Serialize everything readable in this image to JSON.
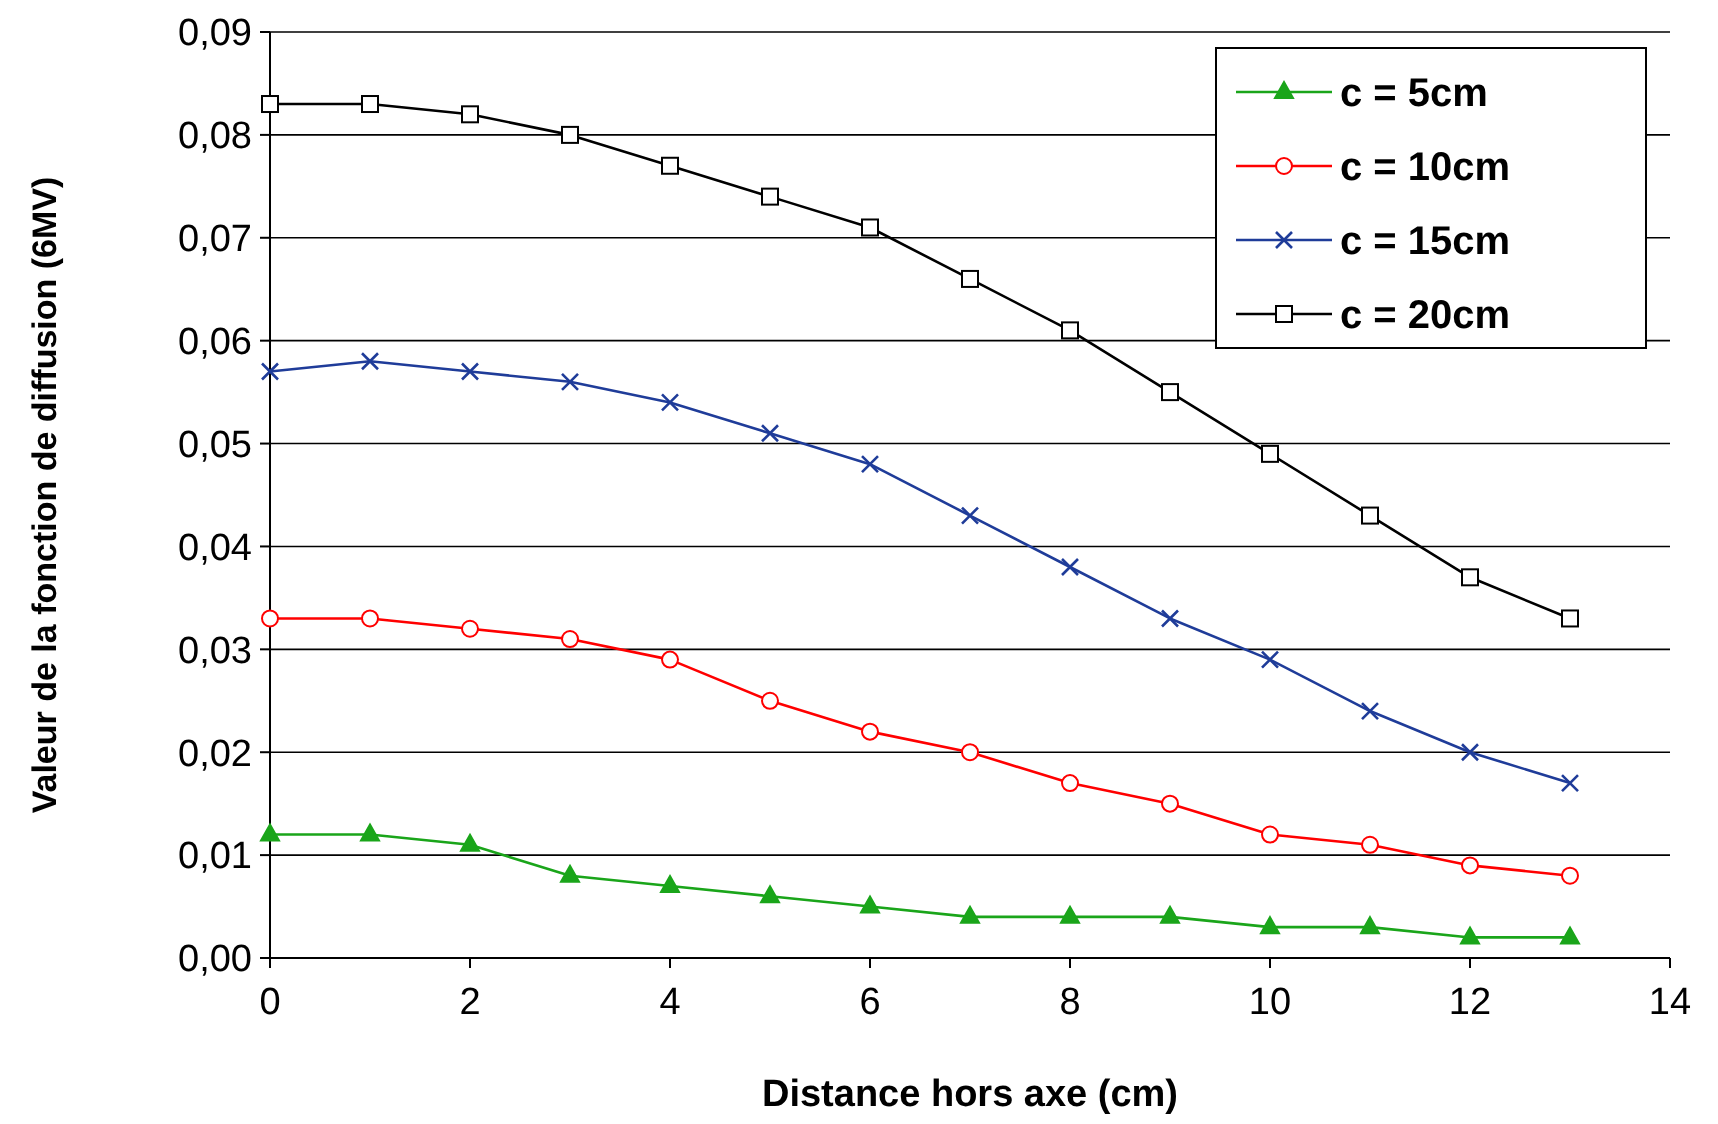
{
  "chart_data": {
    "type": "line",
    "xlabel": "Distance hors axe (cm)",
    "ylabel": "Valeur de la fonction de diffusion (6MV)",
    "x": [
      0,
      1,
      2,
      3,
      4,
      5,
      6,
      7,
      8,
      9,
      10,
      11,
      12,
      13
    ],
    "series": [
      {
        "name": "c = 5cm",
        "color": "#1aa51a",
        "marker": "triangle",
        "values": [
          0.012,
          0.012,
          0.011,
          0.008,
          0.007,
          0.006,
          0.005,
          0.004,
          0.004,
          0.004,
          0.003,
          0.003,
          0.002,
          0.002
        ]
      },
      {
        "name": "c = 10cm",
        "color": "#ff0000",
        "marker": "circle",
        "values": [
          0.033,
          0.033,
          0.032,
          0.031,
          0.029,
          0.025,
          0.022,
          0.02,
          0.017,
          0.015,
          0.012,
          0.011,
          0.009,
          0.008
        ]
      },
      {
        "name": "c = 15cm",
        "color": "#1f3c99",
        "marker": "cross",
        "values": [
          0.057,
          0.058,
          0.057,
          0.056,
          0.054,
          0.051,
          0.048,
          0.043,
          0.038,
          0.033,
          0.029,
          0.024,
          0.02,
          0.017
        ]
      },
      {
        "name": "c = 20cm",
        "color": "#000000",
        "marker": "square",
        "values": [
          0.083,
          0.083,
          0.082,
          0.08,
          0.077,
          0.074,
          0.071,
          0.066,
          0.061,
          0.055,
          0.049,
          0.043,
          0.037,
          0.033
        ]
      }
    ],
    "xlim": [
      0,
      14
    ],
    "xticks": [
      0,
      2,
      4,
      6,
      8,
      10,
      12,
      14
    ],
    "ylim": [
      0,
      0.09
    ],
    "yticks": [
      {
        "value": 0,
        "label": "0,00"
      },
      {
        "value": 0.01,
        "label": "0,01"
      },
      {
        "value": 0.02,
        "label": "0,02"
      },
      {
        "value": 0.03,
        "label": "0,03"
      },
      {
        "value": 0.04,
        "label": "0,04"
      },
      {
        "value": 0.05,
        "label": "0,05"
      },
      {
        "value": 0.06,
        "label": "0,06"
      },
      {
        "value": 0.07,
        "label": "0,07"
      },
      {
        "value": 0.08,
        "label": "0,08"
      },
      {
        "value": 0.09,
        "label": "0,09"
      }
    ],
    "grid": "y",
    "legend": "top right",
    "line_style": "solid"
  }
}
